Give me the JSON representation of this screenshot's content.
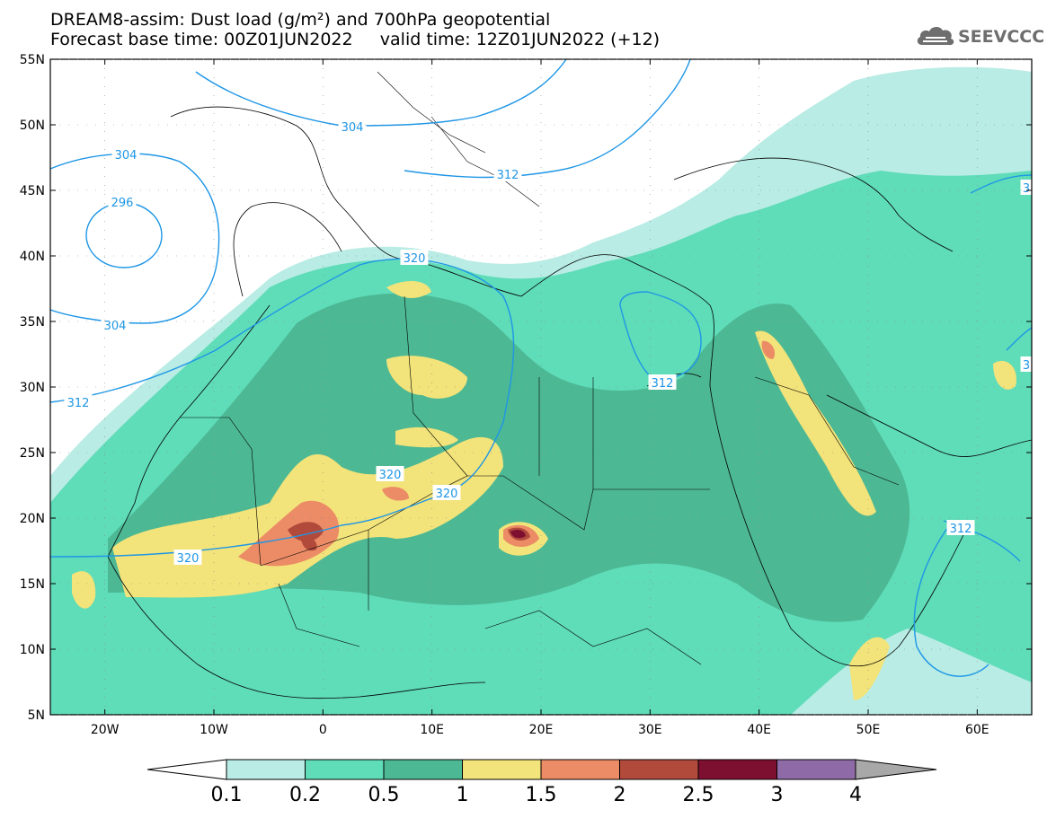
{
  "header": {
    "title_line1": "DREAM8-assim: Dust load (g/m²) and 700hPa geopotential",
    "title_line2": "Forecast base time: 00Z01JUN2022     valid time: 12Z01JUN2022 (+12)"
  },
  "logo": {
    "text": "SEEVCCC",
    "icon": "cloud-logo-icon",
    "color": "#6e6e6e"
  },
  "map": {
    "lon_ticks": [
      "20W",
      "10W",
      "0",
      "10E",
      "20E",
      "30E",
      "40E",
      "50E",
      "60E"
    ],
    "lat_ticks": [
      "55N",
      "50N",
      "45N",
      "40N",
      "35N",
      "30N",
      "25N",
      "20N",
      "15N",
      "10N",
      "5N"
    ],
    "lon_range": [
      -25,
      65
    ],
    "lat_range": [
      5,
      55
    ],
    "contour_labels": [
      "304",
      "304",
      "296",
      "304",
      "312",
      "312",
      "320",
      "312",
      "320",
      "320",
      "320",
      "312",
      "3",
      "3"
    ],
    "contour_color": "#1e96e6"
  },
  "colorbar": {
    "labels": [
      "0.1",
      "0.2",
      "0.5",
      "1",
      "1.5",
      "2",
      "2.5",
      "3",
      "4"
    ],
    "colors": [
      "#b8ece4",
      "#5fdcb8",
      "#4db894",
      "#f2e37a",
      "#eb8c66",
      "#b24a3c",
      "#7d1030",
      "#8e6aa6",
      "#a8a8a8"
    ]
  }
}
